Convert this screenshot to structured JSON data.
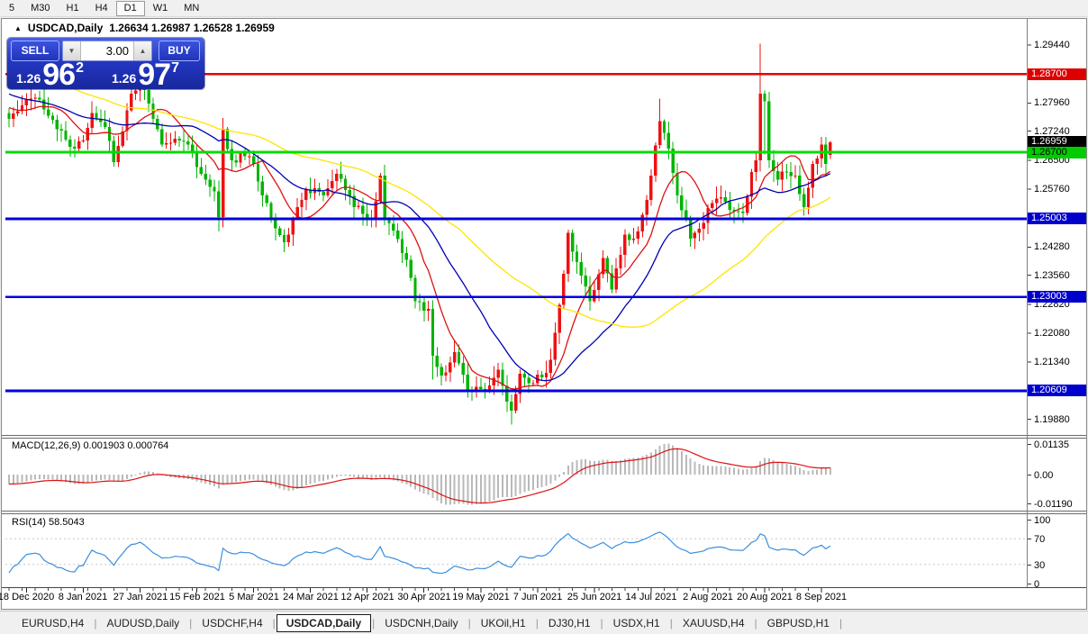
{
  "toolbar": {
    "timeframes": [
      {
        "label": "5",
        "active": false
      },
      {
        "label": "M30",
        "active": false
      },
      {
        "label": "H1",
        "active": false
      },
      {
        "label": "H4",
        "active": false
      },
      {
        "label": "D1",
        "active": true
      },
      {
        "label": "W1",
        "active": false
      },
      {
        "label": "MN",
        "active": false
      }
    ]
  },
  "header": {
    "collapse_icon": "▲",
    "symbol": "USDCAD,Daily",
    "ohlc": "1.26634 1.26987 1.26528 1.26959"
  },
  "trade_panel": {
    "sell_label": "SELL",
    "buy_label": "BUY",
    "volume": "3.00",
    "spinner_down_icon": "▼",
    "spinner_up_icon": "▲",
    "sell_price": {
      "prefix": "1.26",
      "big": "96",
      "sup": "2"
    },
    "buy_price": {
      "prefix": "1.26",
      "big": "97",
      "sup": "7"
    }
  },
  "price_axis": {
    "ticks": [
      "1.29440",
      "1.27960",
      "1.27240",
      "1.26500",
      "1.25760",
      "1.24280",
      "1.23560",
      "1.22820",
      "1.22080",
      "1.21340",
      "1.19880"
    ],
    "markers": [
      {
        "value": "1.28700",
        "bg": "#dd0000",
        "fg": "#ffffff"
      },
      {
        "value": "1.26959",
        "bg": "#000000",
        "fg": "#ffffff"
      },
      {
        "value": "1.26700",
        "bg": "#00cc00",
        "fg": "#000000"
      },
      {
        "value": "1.25003",
        "bg": "#0000cc",
        "fg": "#ffffff"
      },
      {
        "value": "1.23003",
        "bg": "#0000cc",
        "fg": "#ffffff"
      },
      {
        "value": "1.20609",
        "bg": "#0000cc",
        "fg": "#ffffff"
      }
    ]
  },
  "macd_panel": {
    "label": "MACD(12,26,9)",
    "values": "0.001903 0.000764",
    "scale": [
      "0.01135",
      "0.00",
      "-0.01190"
    ]
  },
  "rsi_panel": {
    "label": "RSI(14)",
    "value": "58.5043",
    "scale": [
      "100",
      "70",
      "30",
      "0"
    ]
  },
  "tabs": {
    "active_index": 3,
    "items": [
      "EURUSD,H4",
      "AUDUSD,Daily",
      "USDCHF,H4",
      "USDCAD,Daily",
      "USDCNH,Daily",
      "UKOil,H1",
      "DJ30,H1",
      "USDX,H1",
      "XAUUSD,H4",
      "GBPUSD,H1"
    ]
  },
  "colors": {
    "candle_up": "#ee1111",
    "candle_down": "#00b400",
    "ma_fast": "#dd1111",
    "ma_mid": "#0000b4",
    "ma_slow": "#ffe400",
    "macd_hist": "#b9b9b9",
    "macd_signal": "#dd1111",
    "rsi_line": "#3a8fdf",
    "level_dashed": "#c8c8c8"
  },
  "chart_data": {
    "type": "candlestick",
    "symbol": "USDCAD",
    "timeframe": "Daily",
    "title": "USDCAD,Daily",
    "ohlc_display": {
      "open": "1.26634",
      "high": "1.26987",
      "low": "1.26528",
      "close": "1.26959"
    },
    "ylim": [
      1.1953,
      1.2995
    ],
    "grid": false,
    "color_scheme": "red-up-green-down",
    "y_ticks": [
      1.2944,
      1.287,
      1.2796,
      1.2724,
      1.26959,
      1.267,
      1.265,
      1.2576,
      1.25003,
      1.2428,
      1.2356,
      1.23003,
      1.2282,
      1.2208,
      1.2134,
      1.20609,
      1.1988
    ],
    "x_labels": [
      {
        "text": "18 Dec 2020",
        "i": 4
      },
      {
        "text": "8 Jan 2021",
        "i": 17
      },
      {
        "text": "27 Jan 2021",
        "i": 30
      },
      {
        "text": "15 Feb 2021",
        "i": 43
      },
      {
        "text": "5 Mar 2021",
        "i": 56
      },
      {
        "text": "24 Mar 2021",
        "i": 69
      },
      {
        "text": "12 Apr 2021",
        "i": 82
      },
      {
        "text": "30 Apr 2021",
        "i": 95
      },
      {
        "text": "19 May 2021",
        "i": 108
      },
      {
        "text": "7 Jun 2021",
        "i": 121
      },
      {
        "text": "25 Jun 2021",
        "i": 134
      },
      {
        "text": "14 Jul 2021",
        "i": 147
      },
      {
        "text": "2 Aug 2021",
        "i": 160
      },
      {
        "text": "20 Aug 2021",
        "i": 173
      },
      {
        "text": "8 Sep 2021",
        "i": 186
      }
    ],
    "price_waypoints": [
      [
        -55,
        1.306
      ],
      [
        -42,
        1.2985
      ],
      [
        -30,
        1.2915
      ],
      [
        -18,
        1.2845
      ],
      [
        -8,
        1.28
      ],
      [
        -1,
        1.277
      ],
      [
        0,
        1.2755
      ],
      [
        3,
        1.279
      ],
      [
        6,
        1.281
      ],
      [
        12,
        1.2725
      ],
      [
        15,
        1.268
      ],
      [
        17,
        1.27
      ],
      [
        19,
        1.277
      ],
      [
        22,
        1.2735
      ],
      [
        24,
        1.2645
      ],
      [
        28,
        1.282
      ],
      [
        30,
        1.285
      ],
      [
        32,
        1.2795
      ],
      [
        35,
        1.269
      ],
      [
        38,
        1.2705
      ],
      [
        41,
        1.269
      ],
      [
        44,
        1.2615
      ],
      [
        47,
        1.257
      ],
      [
        48,
        1.2505
      ],
      [
        49,
        1.273
      ],
      [
        51,
        1.265
      ],
      [
        54,
        1.266
      ],
      [
        56,
        1.264
      ],
      [
        58,
        1.256
      ],
      [
        60,
        1.25
      ],
      [
        63,
        1.244
      ],
      [
        66,
        1.253
      ],
      [
        68,
        1.2575
      ],
      [
        72,
        1.256
      ],
      [
        75,
        1.2615
      ],
      [
        79,
        1.253
      ],
      [
        83,
        1.25
      ],
      [
        85,
        1.261
      ],
      [
        86,
        1.25
      ],
      [
        88,
        1.247
      ],
      [
        91,
        1.2395
      ],
      [
        93,
        1.229
      ],
      [
        96,
        1.227
      ],
      [
        97,
        1.215
      ],
      [
        99,
        1.21
      ],
      [
        102,
        1.216
      ],
      [
        105,
        1.206
      ],
      [
        108,
        1.2065
      ],
      [
        110,
        1.2075
      ],
      [
        112,
        1.2115
      ],
      [
        115,
        1.201
      ],
      [
        117,
        1.2105
      ],
      [
        119,
        1.208
      ],
      [
        122,
        1.2095
      ],
      [
        124,
        1.214
      ],
      [
        126,
        1.228
      ],
      [
        127,
        1.236
      ],
      [
        128,
        1.2465
      ],
      [
        130,
        1.239
      ],
      [
        133,
        1.229
      ],
      [
        136,
        1.24
      ],
      [
        138,
        1.232
      ],
      [
        141,
        1.246
      ],
      [
        143,
        1.245
      ],
      [
        145,
        1.251
      ],
      [
        147,
        1.261
      ],
      [
        149,
        1.275
      ],
      [
        151,
        1.268
      ],
      [
        153,
        1.256
      ],
      [
        156,
        1.245
      ],
      [
        158,
        1.2475
      ],
      [
        161,
        1.254
      ],
      [
        163,
        1.2555
      ],
      [
        166,
        1.252
      ],
      [
        168,
        1.2515
      ],
      [
        170,
        1.262
      ],
      [
        171,
        1.265
      ],
      [
        172,
        1.282
      ],
      [
        173,
        1.28
      ],
      [
        174,
        1.265
      ],
      [
        176,
        1.26
      ],
      [
        178,
        1.262
      ],
      [
        180,
        1.261
      ],
      [
        182,
        1.253
      ],
      [
        184,
        1.264
      ],
      [
        186,
        1.269
      ],
      [
        187,
        1.264
      ],
      [
        188,
        1.26959
      ]
    ],
    "special_candles": [
      {
        "i": 48,
        "l": 1.2468
      },
      {
        "i": 63,
        "l": 1.2415
      },
      {
        "i": 97,
        "l": 1.209
      },
      {
        "i": 115,
        "l": 1.1974
      },
      {
        "i": 149,
        "h": 1.2807
      },
      {
        "i": 172,
        "h": 1.2948
      },
      {
        "i": 173,
        "l": 1.2665
      },
      {
        "i": 188,
        "o": 1.26634,
        "h": 1.26987,
        "l": 1.26528,
        "c": 1.26959
      }
    ],
    "horizontal_lines": [
      {
        "price": 1.287,
        "color": "#e80000",
        "width": 2.6
      },
      {
        "price": 1.267,
        "color": "#00dd00",
        "width": 3
      },
      {
        "price": 1.25003,
        "color": "#0000dd",
        "width": 3
      },
      {
        "price": 1.23003,
        "color": "#0000dd",
        "width": 2.4
      },
      {
        "price": 1.20609,
        "color": "#0000dd",
        "width": 3
      }
    ],
    "moving_averages": [
      {
        "period": 10,
        "color": "#dd1111"
      },
      {
        "period": 25,
        "color": "#0000b4"
      },
      {
        "period": 55,
        "color": "#ffe400"
      }
    ],
    "macd": {
      "label": "MACD(12,26,9)",
      "main_value": 0.001903,
      "signal_value": 0.000764,
      "scale_max": 0.01135,
      "scale_min": -0.0119,
      "params": [
        12,
        26,
        9
      ]
    },
    "rsi": {
      "label": "RSI(14)",
      "value": 58.5043,
      "period": 14,
      "levels": [
        70,
        30
      ],
      "range": [
        0,
        100
      ]
    }
  }
}
